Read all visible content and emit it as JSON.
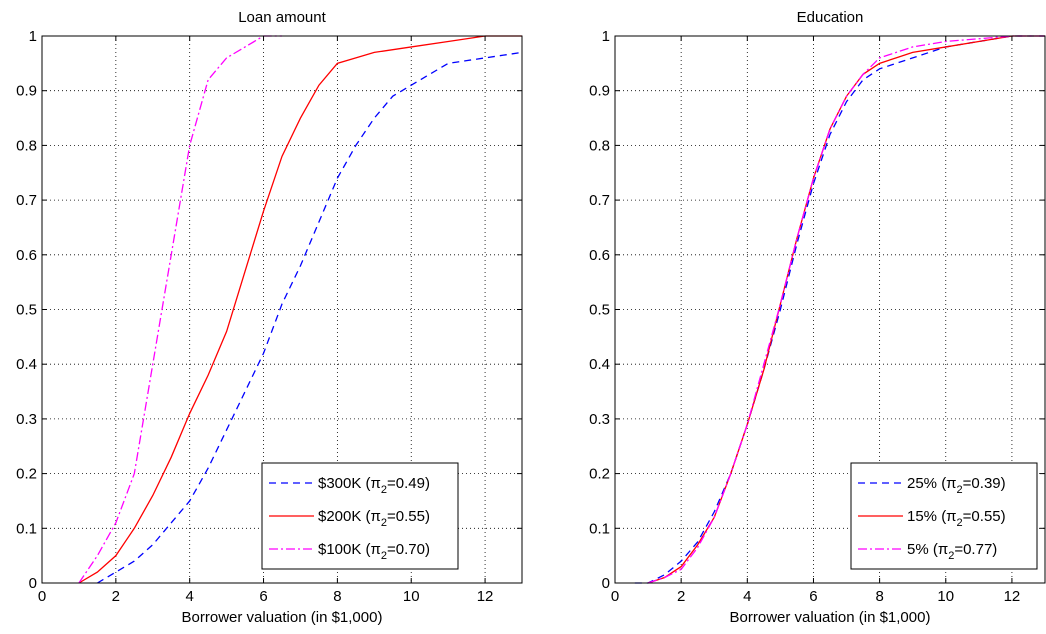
{
  "chart_data": [
    {
      "type": "line",
      "title": "Loan amount",
      "xlabel": "Borrower valuation (in $1,000)",
      "ylabel": "",
      "xlim": [
        0,
        13
      ],
      "ylim": [
        0,
        1
      ],
      "xticks": [
        0,
        2,
        4,
        6,
        8,
        10,
        12
      ],
      "yticks": [
        0,
        0.1,
        0.2,
        0.3,
        0.4,
        0.5,
        0.6,
        0.7,
        0.8,
        0.9,
        1
      ],
      "ytick_labels": [
        "0",
        "0.1",
        "0.2",
        "0.3",
        "0.4",
        "0.5",
        "0.6",
        "0.7",
        "0.8",
        "0.9",
        "1"
      ],
      "grid": true,
      "legend_position": "bottom-right",
      "series": [
        {
          "name": "$300K",
          "legend_parts": [
            "$300K (π",
            "2",
            "=0.49)"
          ],
          "color": "#0000ff",
          "style": "dashed",
          "x": [
            1.5,
            2.0,
            2.5,
            3.0,
            3.5,
            4.0,
            4.5,
            5.0,
            5.5,
            6.0,
            6.5,
            7.0,
            7.5,
            8.0,
            8.5,
            9.0,
            9.5,
            10.0,
            10.5,
            11.0,
            11.5,
            12.0,
            12.5,
            13.0
          ],
          "y": [
            0.0,
            0.02,
            0.04,
            0.07,
            0.11,
            0.15,
            0.21,
            0.28,
            0.35,
            0.42,
            0.51,
            0.58,
            0.66,
            0.74,
            0.8,
            0.85,
            0.89,
            0.91,
            0.93,
            0.95,
            0.955,
            0.96,
            0.965,
            0.97
          ]
        },
        {
          "name": "$200K",
          "legend_parts": [
            "$200K (π",
            "2",
            "=0.55)"
          ],
          "color": "#ff0000",
          "style": "solid",
          "x": [
            1.0,
            1.5,
            2.0,
            2.5,
            3.0,
            3.5,
            4.0,
            4.5,
            5.0,
            5.5,
            6.0,
            6.5,
            7.0,
            7.5,
            8.0,
            8.5,
            9.0,
            10.0,
            11.0,
            12.0,
            13.0
          ],
          "y": [
            0.0,
            0.02,
            0.05,
            0.1,
            0.16,
            0.23,
            0.31,
            0.38,
            0.46,
            0.57,
            0.68,
            0.78,
            0.85,
            0.91,
            0.95,
            0.96,
            0.97,
            0.98,
            0.99,
            1.0,
            1.0
          ]
        },
        {
          "name": "$100K",
          "legend_parts": [
            "$100K (π",
            "2",
            "=0.70)"
          ],
          "color": "#ff00ff",
          "style": "dashdot",
          "x": [
            1.0,
            1.5,
            2.0,
            2.5,
            3.0,
            3.5,
            4.0,
            4.5,
            5.0,
            5.5,
            6.0,
            6.5
          ],
          "y": [
            0.0,
            0.05,
            0.11,
            0.2,
            0.4,
            0.6,
            0.8,
            0.92,
            0.96,
            0.98,
            1.0,
            1.0
          ]
        }
      ]
    },
    {
      "type": "line",
      "title": "Education",
      "xlabel": "Borrower valuation (in $1,000)",
      "ylabel": "",
      "xlim": [
        0,
        13
      ],
      "ylim": [
        0,
        1
      ],
      "xticks": [
        0,
        2,
        4,
        6,
        8,
        10,
        12
      ],
      "yticks": [
        0,
        0.1,
        0.2,
        0.3,
        0.4,
        0.5,
        0.6,
        0.7,
        0.8,
        0.9,
        1
      ],
      "ytick_labels": [
        "0",
        "0.1",
        "0.2",
        "0.3",
        "0.4",
        "0.5",
        "0.6",
        "0.7",
        "0.8",
        "0.9",
        "1"
      ],
      "grid": true,
      "legend_position": "bottom-right",
      "series": [
        {
          "name": "25%",
          "legend_parts": [
            "25% (π",
            "2",
            "=0.39)"
          ],
          "color": "#0000ff",
          "style": "dashed",
          "x": [
            0.6,
            1.0,
            1.5,
            2.0,
            2.5,
            3.0,
            3.5,
            4.0,
            4.5,
            5.0,
            5.5,
            6.0,
            6.5,
            7.0,
            7.5,
            8.0,
            8.5,
            9.0,
            10.0,
            11.0,
            12.0,
            13.0
          ],
          "y": [
            0.0,
            0.0,
            0.015,
            0.04,
            0.075,
            0.13,
            0.2,
            0.29,
            0.39,
            0.5,
            0.62,
            0.73,
            0.82,
            0.88,
            0.92,
            0.94,
            0.95,
            0.96,
            0.98,
            0.99,
            1.0,
            1.0
          ]
        },
        {
          "name": "15%",
          "legend_parts": [
            "15% (π",
            "2",
            "=0.55)"
          ],
          "color": "#ff0000",
          "style": "solid",
          "x": [
            1.0,
            1.5,
            2.0,
            2.5,
            3.0,
            3.5,
            4.0,
            4.5,
            5.0,
            5.5,
            6.0,
            6.5,
            7.0,
            7.5,
            8.0,
            8.5,
            9.0,
            10.0,
            11.0,
            12.0,
            13.0
          ],
          "y": [
            0.0,
            0.01,
            0.03,
            0.07,
            0.12,
            0.2,
            0.29,
            0.39,
            0.51,
            0.63,
            0.74,
            0.83,
            0.89,
            0.93,
            0.95,
            0.96,
            0.97,
            0.98,
            0.99,
            1.0,
            1.0
          ]
        },
        {
          "name": "5%",
          "legend_parts": [
            "5% (π",
            "2",
            "=0.77)"
          ],
          "color": "#ff00ff",
          "style": "dashdot",
          "x": [
            1.0,
            1.5,
            2.0,
            2.5,
            3.0,
            3.5,
            4.0,
            4.5,
            5.0,
            5.5,
            6.0,
            6.5,
            7.0,
            7.5,
            8.0,
            8.5,
            9.0,
            10.0,
            11.0,
            12.0,
            13.0
          ],
          "y": [
            0.0,
            0.01,
            0.025,
            0.065,
            0.12,
            0.2,
            0.29,
            0.4,
            0.51,
            0.63,
            0.74,
            0.83,
            0.89,
            0.93,
            0.96,
            0.97,
            0.98,
            0.99,
            0.995,
            1.0,
            1.0
          ]
        }
      ]
    }
  ]
}
